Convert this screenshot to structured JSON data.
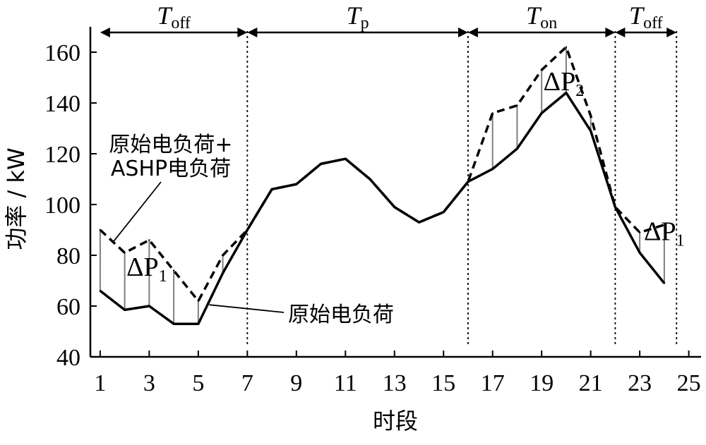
{
  "chart_data": {
    "type": "line",
    "xlabel": "时段",
    "ylabel": "功率 / kW",
    "xlim": [
      0.6,
      25.5
    ],
    "ylim": [
      40,
      170
    ],
    "x_ticks": [
      1,
      3,
      5,
      7,
      9,
      11,
      13,
      15,
      17,
      19,
      21,
      23,
      25
    ],
    "y_ticks": [
      40,
      60,
      80,
      100,
      120,
      140,
      160
    ],
    "x": [
      1,
      2,
      3,
      4,
      5,
      6,
      7,
      8,
      9,
      10,
      11,
      12,
      13,
      14,
      15,
      16,
      17,
      18,
      19,
      20,
      21,
      22,
      23,
      24
    ],
    "series": [
      {
        "key": "base",
        "label": "原始电负荷",
        "style": "solid",
        "values": [
          66,
          58.5,
          60,
          53,
          53,
          73,
          90,
          106,
          108,
          116,
          118,
          110,
          99,
          93,
          97,
          109,
          114,
          122,
          136,
          144,
          129,
          99,
          81,
          69
        ]
      },
      {
        "key": "combined",
        "label": "原始电负荷+ASHP电负荷",
        "style": "dashed",
        "values": [
          90,
          81,
          86,
          74,
          62,
          80,
          90,
          106,
          108,
          116,
          118,
          110,
          99,
          93,
          97,
          109,
          136,
          139,
          153,
          162,
          135,
          99,
          89,
          92
        ]
      }
    ],
    "periods": [
      {
        "main": "T",
        "sub": "off",
        "start": 1,
        "end": 7
      },
      {
        "main": "T",
        "sub": "p",
        "start": 7,
        "end": 16
      },
      {
        "main": "T",
        "sub": "on",
        "start": 16,
        "end": 22
      },
      {
        "main": "T",
        "sub": "off",
        "start": 22,
        "end": 24.5
      }
    ],
    "dividers": [
      7,
      16,
      22,
      24.5
    ],
    "delta_labels": [
      {
        "main": "ΔP",
        "sub": "1",
        "x": 2.9,
        "y": 72
      },
      {
        "main": "ΔP",
        "sub": "2",
        "x": 19.9,
        "y": 145
      },
      {
        "main": "ΔP",
        "sub": "1",
        "x": 24.0,
        "y": 86
      }
    ],
    "annotations": [
      {
        "key": "combined",
        "lines": [
          "原始电负荷+",
          "ASHP电负荷"
        ]
      },
      {
        "key": "base",
        "lines": [
          "原始电负荷"
        ]
      }
    ]
  }
}
